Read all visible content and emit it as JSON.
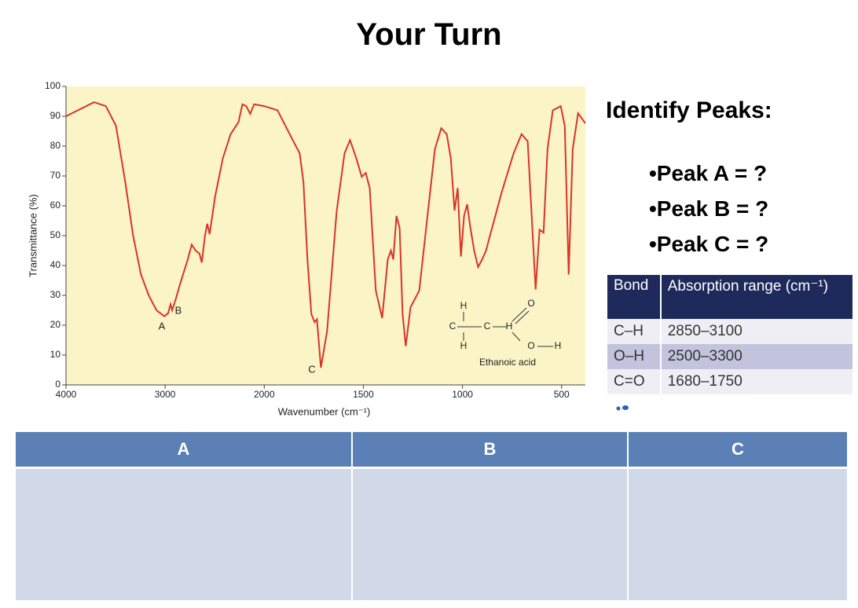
{
  "title": "Your Turn",
  "chart_data": {
    "type": "line",
    "xlabel": "Wavenumber (cm⁻¹)",
    "ylabel": "Transmittance (%)",
    "xlim": [
      4000,
      380
    ],
    "ylim": [
      0,
      100
    ],
    "xticks": [
      4000,
      3000,
      2000,
      1500,
      1000,
      500
    ],
    "yticks": [
      0,
      10,
      20,
      30,
      40,
      50,
      60,
      70,
      80,
      90,
      100
    ],
    "background": "#fbf4c6",
    "annotations": [
      "A",
      "B",
      "C"
    ],
    "molecule": {
      "atoms": [
        "H",
        "H",
        "C",
        "C",
        "O",
        "H",
        "O",
        "H"
      ],
      "name": "Ethanoic acid"
    },
    "series": [
      {
        "color": "#d9342b",
        "x": [
          4000,
          3717,
          3598,
          3496,
          3402,
          3323,
          3244,
          3165,
          3087,
          3008,
          2970,
          2945,
          2929,
          2890,
          2850,
          2772,
          2732,
          2693,
          2654,
          2630,
          2598,
          2575,
          2551,
          2496,
          2417,
          2339,
          2260,
          2220,
          2181,
          2142,
          2102,
          2000,
          1933,
          1893,
          1853,
          1821,
          1802,
          1782,
          1762,
          1746,
          1734,
          1714,
          1683,
          1635,
          1595,
          1567,
          1536,
          1508,
          1488,
          1468,
          1437,
          1405,
          1377,
          1361,
          1349,
          1333,
          1317,
          1302,
          1286,
          1262,
          1218,
          1179,
          1139,
          1107,
          1079,
          1059,
          1040,
          1024,
          1008,
          992,
          976,
          960,
          940,
          921,
          901,
          881,
          861,
          802,
          742,
          702,
          671,
          631,
          611,
          591,
          571,
          544,
          504,
          484,
          464,
          444,
          417,
          380
        ],
        "values": [
          90,
          94.7,
          93.4,
          86.8,
          68,
          50,
          37,
          30,
          25,
          23,
          24,
          27,
          25,
          29,
          33.7,
          42,
          47,
          45,
          44,
          41,
          50,
          54,
          50.5,
          63,
          76,
          84,
          88,
          94,
          93.4,
          90.8,
          94,
          93.4,
          92,
          86.8,
          81.6,
          77.6,
          68,
          42,
          23.7,
          21,
          22,
          5.8,
          18,
          58,
          77.6,
          82,
          76,
          69.7,
          71,
          66,
          31.6,
          22.4,
          42,
          45,
          42,
          56.6,
          52.6,
          23.7,
          13,
          26,
          31.6,
          55,
          79,
          86,
          84,
          76,
          58.4,
          66,
          43,
          56.6,
          60.5,
          52.6,
          44.7,
          39.5,
          42,
          45,
          50,
          64.5,
          77.6,
          84,
          81.6,
          32,
          52,
          51,
          79,
          92,
          93.4,
          86.8,
          37,
          79,
          91,
          87.6
        ]
      }
    ]
  },
  "identify": {
    "heading": "Identify Peaks:",
    "items": [
      "•Peak A = ?",
      "•Peak B = ?",
      "•Peak C = ?"
    ]
  },
  "bond_table": {
    "header": [
      "Bond",
      "Absorption range (cm⁻¹)"
    ],
    "rows": [
      [
        "C–H",
        "2850–3100"
      ],
      [
        "O–H",
        "2500–3300"
      ],
      [
        "C=O",
        "1680–1750"
      ]
    ]
  },
  "answer_table": {
    "header": [
      "A",
      "B",
      "C"
    ]
  }
}
